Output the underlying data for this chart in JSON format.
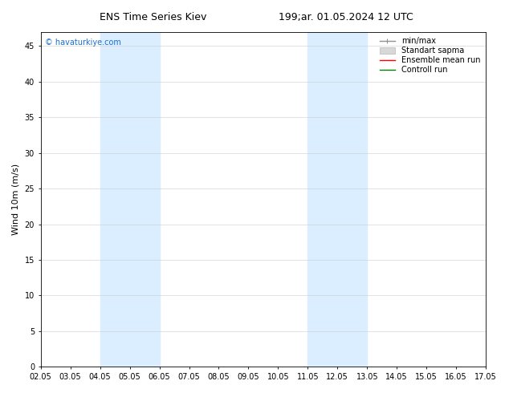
{
  "title_left": "ENS Time Series Kiev",
  "title_right": "199;ar. 01.05.2024 12 UTC",
  "ylabel": "Wind 10m (m/s)",
  "watermark": "© havaturkiye.com",
  "xlim_start": 0,
  "xlim_end": 15,
  "ylim_min": 0,
  "ylim_max": 47,
  "yticks": [
    0,
    5,
    10,
    15,
    20,
    25,
    30,
    35,
    40,
    45
  ],
  "xtick_labels": [
    "02.05",
    "03.05",
    "04.05",
    "05.05",
    "06.05",
    "07.05",
    "08.05",
    "09.05",
    "10.05",
    "11.05",
    "12.05",
    "13.05",
    "14.05",
    "15.05",
    "16.05",
    "17.05"
  ],
  "shaded_bands": [
    {
      "x_start": 2,
      "x_end": 4,
      "color": "#daeeff"
    },
    {
      "x_start": 9,
      "x_end": 11,
      "color": "#daeeff"
    }
  ],
  "legend_entries": [
    {
      "label": "min/max",
      "color": "#909090",
      "lw": 1.0,
      "type": "errorbar"
    },
    {
      "label": "Standart sapma",
      "color": "#d8d8d8",
      "lw": 5,
      "type": "band"
    },
    {
      "label": "Ensemble mean run",
      "color": "red",
      "lw": 1.0,
      "type": "line"
    },
    {
      "label": "Controll run",
      "color": "green",
      "lw": 1.0,
      "type": "line"
    }
  ],
  "background_color": "#ffffff",
  "plot_bg_color": "#ffffff",
  "watermark_color": "#1a6fce",
  "title_fontsize": 9,
  "tick_fontsize": 7,
  "ylabel_fontsize": 8,
  "watermark_fontsize": 7,
  "legend_fontsize": 7,
  "spine_color": "#000000",
  "grid_color": "#cccccc",
  "grid_lw": 0.4
}
